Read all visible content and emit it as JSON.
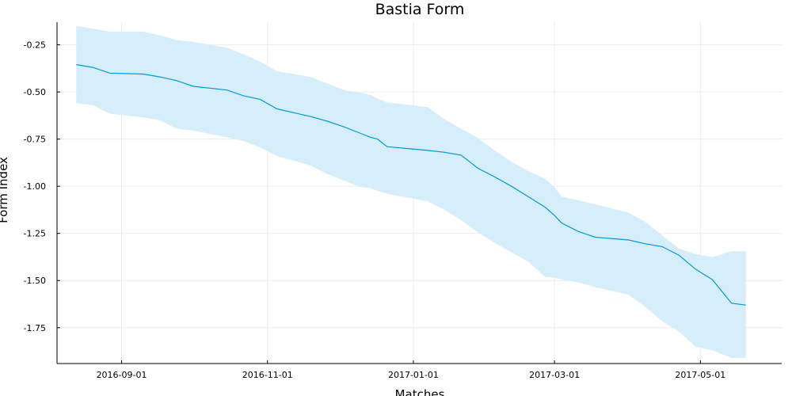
{
  "chart_data": {
    "type": "line",
    "title": "Bastia Form",
    "xlabel": "Matches",
    "ylabel": "Form Index",
    "x_axis_type": "date",
    "xlim": [
      "2016-08-05",
      "2017-06-04"
    ],
    "ylim": [
      -1.94,
      -0.13
    ],
    "x_ticks": [
      "2016-09-01",
      "2016-11-01",
      "2017-01-01",
      "2017-03-01",
      "2017-05-01"
    ],
    "y_ticks": [
      -0.25,
      -0.5,
      -0.75,
      -1.0,
      -1.25,
      -1.5,
      -1.75
    ],
    "y_tick_labels": [
      "-0.25",
      "-0.50",
      "-0.75",
      "-1.00",
      "-1.25",
      "-1.50",
      "-1.75"
    ],
    "grid": true,
    "legend": "none",
    "colors": {
      "line": "#009AD9",
      "band": "#D6EEFA",
      "grid": "#ECECEC",
      "axis": "#000000"
    },
    "series": [
      {
        "x": [
          "2016-08-13",
          "2016-08-20",
          "2016-08-27",
          "2016-09-10",
          "2016-09-17",
          "2016-09-24",
          "2016-10-01",
          "2016-10-15",
          "2016-10-22",
          "2016-10-29",
          "2016-11-05",
          "2016-11-19",
          "2016-11-26",
          "2016-12-03",
          "2016-12-10",
          "2016-12-14",
          "2016-12-17",
          "2016-12-21",
          "2017-01-07",
          "2017-01-14",
          "2017-01-21",
          "2017-01-28",
          "2017-02-04",
          "2017-02-11",
          "2017-02-18",
          "2017-02-25",
          "2017-03-01",
          "2017-03-04",
          "2017-03-11",
          "2017-03-18",
          "2017-04-01",
          "2017-04-08",
          "2017-04-15",
          "2017-04-22",
          "2017-04-29",
          "2017-05-06",
          "2017-05-14",
          "2017-05-20"
        ],
        "y": [
          -0.355,
          -0.37,
          -0.4,
          -0.405,
          -0.42,
          -0.44,
          -0.47,
          -0.49,
          -0.52,
          -0.54,
          -0.59,
          -0.63,
          -0.655,
          -0.685,
          -0.72,
          -0.74,
          -0.75,
          -0.79,
          -0.81,
          -0.82,
          -0.835,
          -0.905,
          -0.95,
          -1.0,
          -1.055,
          -1.11,
          -1.155,
          -1.195,
          -1.24,
          -1.27,
          -1.285,
          -1.305,
          -1.32,
          -1.365,
          -1.44,
          -1.495,
          -1.62,
          -1.63
        ],
        "lower": [
          -0.56,
          -0.57,
          -0.615,
          -0.635,
          -0.65,
          -0.695,
          -0.705,
          -0.74,
          -0.76,
          -0.795,
          -0.84,
          -0.89,
          -0.935,
          -0.97,
          -1.005,
          -1.01,
          -1.025,
          -1.04,
          -1.08,
          -1.125,
          -1.18,
          -1.245,
          -1.3,
          -1.35,
          -1.4,
          -1.48,
          -1.485,
          -1.495,
          -1.51,
          -1.535,
          -1.575,
          -1.64,
          -1.715,
          -1.77,
          -1.85,
          -1.87,
          -1.91,
          -1.91
        ],
        "upper": [
          -0.15,
          -0.165,
          -0.18,
          -0.18,
          -0.2,
          -0.225,
          -0.235,
          -0.265,
          -0.3,
          -0.34,
          -0.39,
          -0.42,
          -0.455,
          -0.49,
          -0.505,
          -0.515,
          -0.535,
          -0.555,
          -0.58,
          -0.645,
          -0.695,
          -0.745,
          -0.81,
          -0.87,
          -0.92,
          -0.96,
          -1.005,
          -1.055,
          -1.075,
          -1.095,
          -1.14,
          -1.19,
          -1.26,
          -1.33,
          -1.36,
          -1.375,
          -1.345,
          -1.345
        ]
      }
    ]
  }
}
